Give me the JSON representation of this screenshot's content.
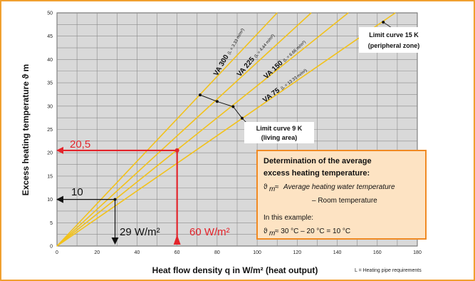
{
  "chart_data": {
    "type": "line",
    "xlabel": "Heat flow density q in W/m² (heat output)",
    "ylabel": "Excess heating temperature ϑ m",
    "xlim": [
      0,
      180
    ],
    "ylim": [
      0,
      50
    ],
    "xticks": [
      0,
      20,
      40,
      60,
      80,
      100,
      120,
      140,
      160,
      180
    ],
    "yticks": [
      0,
      5,
      10,
      15,
      20,
      25,
      30,
      35,
      40,
      45,
      50
    ],
    "grid": true,
    "colors": {
      "background": "#d9d9d9",
      "curve": "#f2c21b",
      "red": "#e3242b",
      "box_border": "#f08a24",
      "box_fill": "#fde3c3",
      "frame": "#f0a030"
    },
    "series": [
      {
        "name": "VA 300",
        "note": "(L = 3.33 m/m²)",
        "points": [
          [
            0,
            0
          ],
          [
            110,
            50
          ]
        ]
      },
      {
        "name": "VA 225",
        "note": "(L = 4.44 m/m²)",
        "points": [
          [
            0,
            0
          ],
          [
            127,
            50
          ]
        ]
      },
      {
        "name": "VA 150",
        "note": "(L = 6.66 m/m²)",
        "points": [
          [
            0,
            0
          ],
          [
            145.5,
            50
          ]
        ]
      },
      {
        "name": "VA 75",
        "note": "(L = 13.33 m/m²)",
        "points": [
          [
            0,
            0
          ],
          [
            169,
            50
          ]
        ]
      }
    ],
    "limit_curves": [
      {
        "label_line1": "Limit curve 9 K",
        "label_line2": "(living area)",
        "points": [
          [
            71.5,
            32.4
          ],
          [
            80,
            31
          ],
          [
            88,
            29.9
          ],
          [
            92.5,
            27.4
          ]
        ]
      },
      {
        "label_line1": "Limit curve 15 K",
        "label_line2": "(peripheral zone)",
        "points": [
          [
            163,
            48
          ]
        ]
      }
    ],
    "examples": [
      {
        "color": "black",
        "x_value": 29,
        "y_value": 10,
        "x_label": "29 W/m²",
        "y_label": "10"
      },
      {
        "color": "red",
        "x_value": 60,
        "y_value": 20.5,
        "x_label": "60 W/m²",
        "y_label": "20,5"
      }
    ],
    "footnote": "L = Heating pipe requirements",
    "info_box": {
      "title_line1": "Determination of the average",
      "title_line2": "excess heating temperature:",
      "formula_symbol": "ϑ",
      "formula_sub": "m",
      "formula_approx": "≈",
      "formula_text": "Average heating water temperature",
      "formula_minus": "– Room temperature",
      "example_intro": "In this example:",
      "example_formula": "≈ 30 °C – 20 °C = 10 °C"
    }
  }
}
